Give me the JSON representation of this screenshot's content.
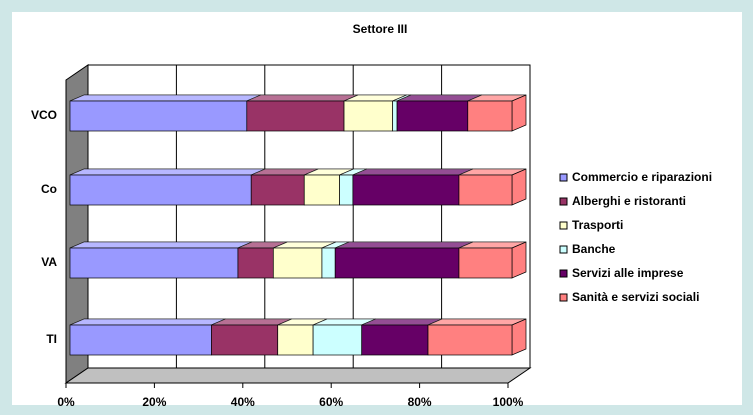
{
  "chart_data": {
    "type": "bar",
    "orientation": "horizontal",
    "stacked": true,
    "title": "Settore III",
    "categories": [
      "VCO",
      "Co",
      "VA",
      "TI"
    ],
    "series": [
      {
        "name": "Commercio e riparazioni",
        "color": "#9999ff",
        "values": [
          40,
          41,
          38,
          32
        ]
      },
      {
        "name": "Alberghi e ristoranti",
        "color": "#993366",
        "values": [
          22,
          12,
          8,
          15
        ]
      },
      {
        "name": "Trasporti",
        "color": "#ffffcc",
        "values": [
          11,
          8,
          11,
          8
        ]
      },
      {
        "name": "Banche",
        "color": "#ccffff",
        "values": [
          1,
          3,
          3,
          11
        ]
      },
      {
        "name": "Servizi alle imprese",
        "color": "#660066",
        "values": [
          16,
          24,
          28,
          15
        ]
      },
      {
        "name": "Sanità e servizi sociali",
        "color": "#ff8080",
        "values": [
          10,
          12,
          12,
          19
        ]
      }
    ],
    "xlim": [
      0,
      100
    ],
    "xticks": [
      {
        "value": 0,
        "label": "0%"
      },
      {
        "value": 20,
        "label": "20%"
      },
      {
        "value": 40,
        "label": "40%"
      },
      {
        "value": 60,
        "label": "60%"
      },
      {
        "value": 80,
        "label": "80%"
      },
      {
        "value": 100,
        "label": "100%"
      }
    ],
    "grid": true,
    "legend": "right"
  }
}
